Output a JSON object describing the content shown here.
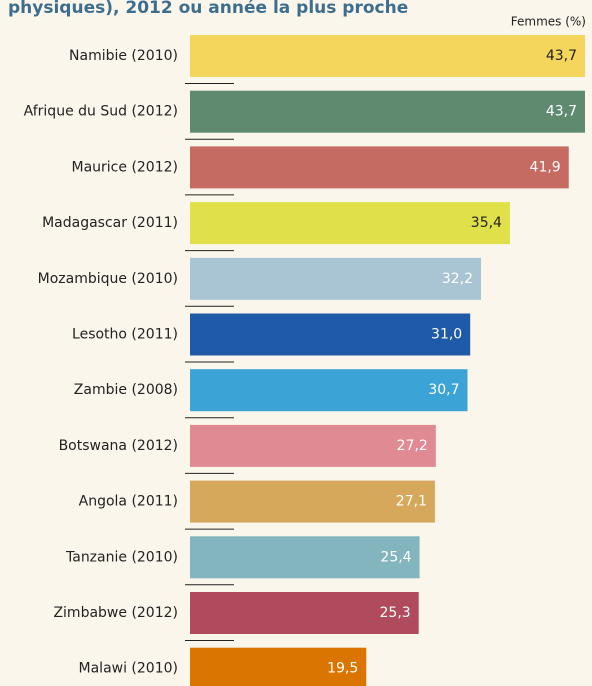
{
  "chart_data": {
    "type": "bar",
    "orientation": "horizontal",
    "title": "physiques), 2012 ou année la plus proche",
    "axis_label": "Femmes (%)",
    "categories": [
      "Namibie (2010)",
      "Afrique du Sud (2012)",
      "Maurice (2012)",
      "Madagascar (2011)",
      "Mozambique (2010)",
      "Lesotho (2011)",
      "Zambie (2008)",
      "Botswana (2012)",
      "Angola (2011)",
      "Tanzanie (2010)",
      "Zimbabwe (2012)",
      "Malawi (2010)"
    ],
    "values": [
      43.7,
      43.7,
      41.9,
      35.4,
      32.2,
      31.0,
      30.7,
      27.2,
      27.1,
      25.4,
      25.3,
      19.5
    ],
    "value_labels": [
      "43,7",
      "43,7",
      "41,9",
      "35,4",
      "32,2",
      "31,0",
      "30,7",
      "27,2",
      "27,1",
      "25,4",
      "25,3",
      "19,5"
    ],
    "colors": [
      "#f5d65c",
      "#5f8a70",
      "#c66b61",
      "#e0e04b",
      "#a9c4d3",
      "#1f5aa8",
      "#3ba3d5",
      "#e08a93",
      "#d6a85b",
      "#82b5bd",
      "#b04b5d",
      "#d97500"
    ]
  }
}
